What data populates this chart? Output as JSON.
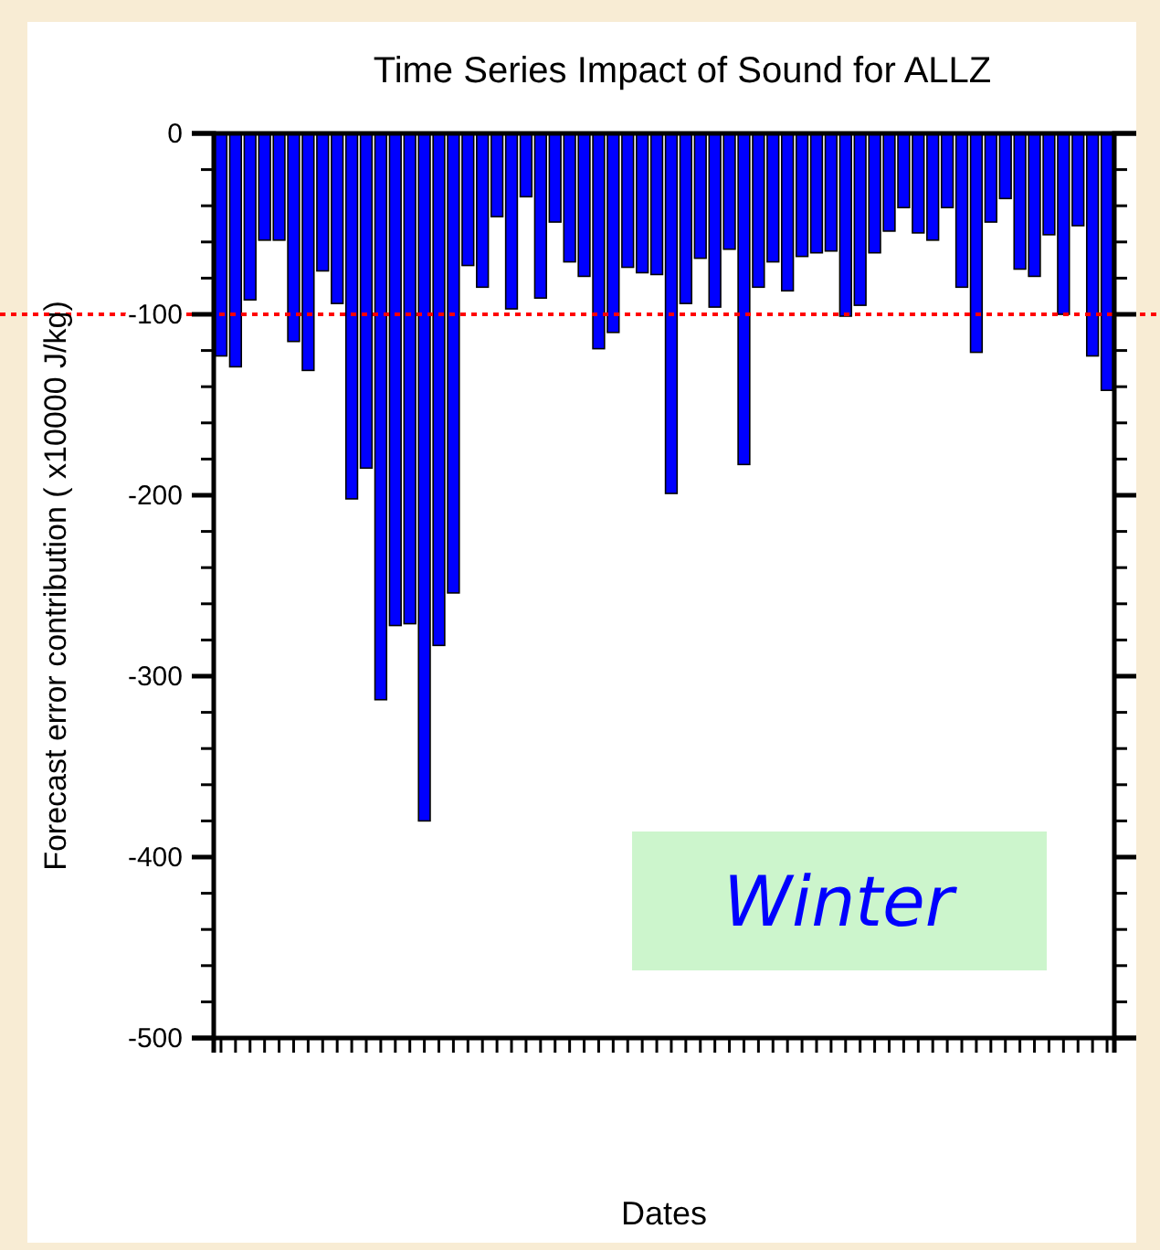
{
  "chart_data": {
    "type": "bar",
    "title": "Time Series Impact of Sound for ALLZ",
    "xlabel": "Dates",
    "ylabel": "Forecast error contribution ( x10000 J/kg)",
    "categories": [
      null,
      null,
      null,
      null,
      null,
      null,
      null,
      null,
      null,
      null,
      null,
      null,
      null,
      null,
      null,
      null,
      null,
      null,
      null,
      null,
      null,
      null,
      null,
      null,
      null,
      null,
      null,
      null,
      null,
      null,
      null,
      null,
      null,
      null,
      null,
      null,
      null,
      null,
      null,
      null,
      null,
      null,
      null,
      null,
      null,
      null,
      null,
      null,
      null,
      null,
      null,
      null,
      null,
      null,
      null,
      null,
      null,
      null,
      null,
      null,
      null,
      null
    ],
    "values": [
      -123,
      -129,
      -92,
      -59,
      -59,
      -115,
      -131,
      -76,
      -94,
      -202,
      -185,
      -313,
      -272,
      -271,
      -380,
      -283,
      -254,
      -73,
      -85,
      -46,
      -97,
      -35,
      -91,
      -49,
      -71,
      -79,
      -119,
      -110,
      -74,
      -77,
      -78,
      -199,
      -94,
      -69,
      -96,
      -64,
      -183,
      -85,
      -71,
      -87,
      -68,
      -66,
      -65,
      -101,
      -95,
      -66,
      -54,
      -41,
      -55,
      -59,
      -41,
      -85,
      -121,
      -49,
      -36,
      -75,
      -79,
      -56,
      -100,
      -51,
      -123,
      -142
    ],
    "color": "#0000ff",
    "ylim": [
      -500,
      0
    ],
    "yticks": [
      0,
      -100,
      -200,
      -300,
      -400,
      -500
    ],
    "grid": false,
    "ref_lines": [
      {
        "axis": "y",
        "value": -100,
        "color": "#ff0000",
        "line_style": "dotted"
      }
    ],
    "annotations": [
      "Winter"
    ]
  }
}
